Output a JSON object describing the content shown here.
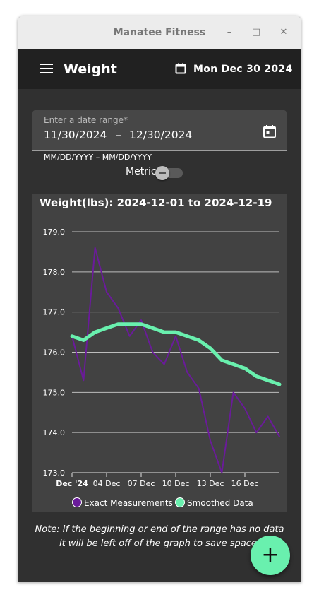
{
  "window": {
    "title": "Manatee Fitness",
    "minimize_glyph": "–",
    "maximize_glyph": "□",
    "close_glyph": "✕"
  },
  "appbar": {
    "menu_icon": "menu-icon",
    "title": "Weight",
    "calendar_icon": "calendar-icon",
    "date": "Mon Dec 30 2024"
  },
  "date_range": {
    "label": "Enter a date range*",
    "start": "11/30/2024",
    "separator": "–",
    "end": "12/30/2024",
    "hint": "MM/DD/YYYY – MM/DD/YYYY",
    "calendar_icon": "calendar-icon"
  },
  "metric": {
    "label": "Metric",
    "on": false
  },
  "chart_data": {
    "type": "line",
    "title": "Weight(lbs): 2024-12-01 to 2024-12-19",
    "xlabel": "",
    "ylabel": "",
    "x": [
      1,
      2,
      3,
      4,
      5,
      6,
      7,
      8,
      9,
      10,
      11,
      12,
      13,
      14,
      15,
      16,
      17,
      18,
      19
    ],
    "xlim": [
      1,
      19
    ],
    "x_ticks": [
      {
        "x": 1,
        "label": "Dec '24",
        "bold": true
      },
      {
        "x": 4,
        "label": "04 Dec"
      },
      {
        "x": 7,
        "label": "07 Dec"
      },
      {
        "x": 10,
        "label": "10 Dec"
      },
      {
        "x": 13,
        "label": "13 Dec"
      },
      {
        "x": 16,
        "label": "16 Dec"
      }
    ],
    "ylim": [
      173.0,
      179.0
    ],
    "y_ticks": [
      "179.0",
      "178.0",
      "177.0",
      "176.0",
      "175.0",
      "174.0",
      "173.0"
    ],
    "grid": true,
    "legend_position": "bottom",
    "series": [
      {
        "name": "Exact Measurements",
        "color": "#6a1b9a",
        "values": [
          176.4,
          175.3,
          178.6,
          177.5,
          177.1,
          176.4,
          176.8,
          176.0,
          175.7,
          176.4,
          175.5,
          175.1,
          173.8,
          173.0,
          175.0,
          174.6,
          174.0,
          174.4,
          173.9
        ]
      },
      {
        "name": "Smoothed Data",
        "color": "#69f0ae",
        "values": [
          176.4,
          176.3,
          176.5,
          176.6,
          176.7,
          176.7,
          176.7,
          176.6,
          176.5,
          176.5,
          176.4,
          176.3,
          176.1,
          175.8,
          175.7,
          175.6,
          175.4,
          175.3,
          175.2
        ]
      }
    ]
  },
  "note": "Note: If the beginning or end of the range has no data it will be left off of the graph to save space.",
  "fab": {
    "label": "+",
    "icon": "plus-icon"
  }
}
